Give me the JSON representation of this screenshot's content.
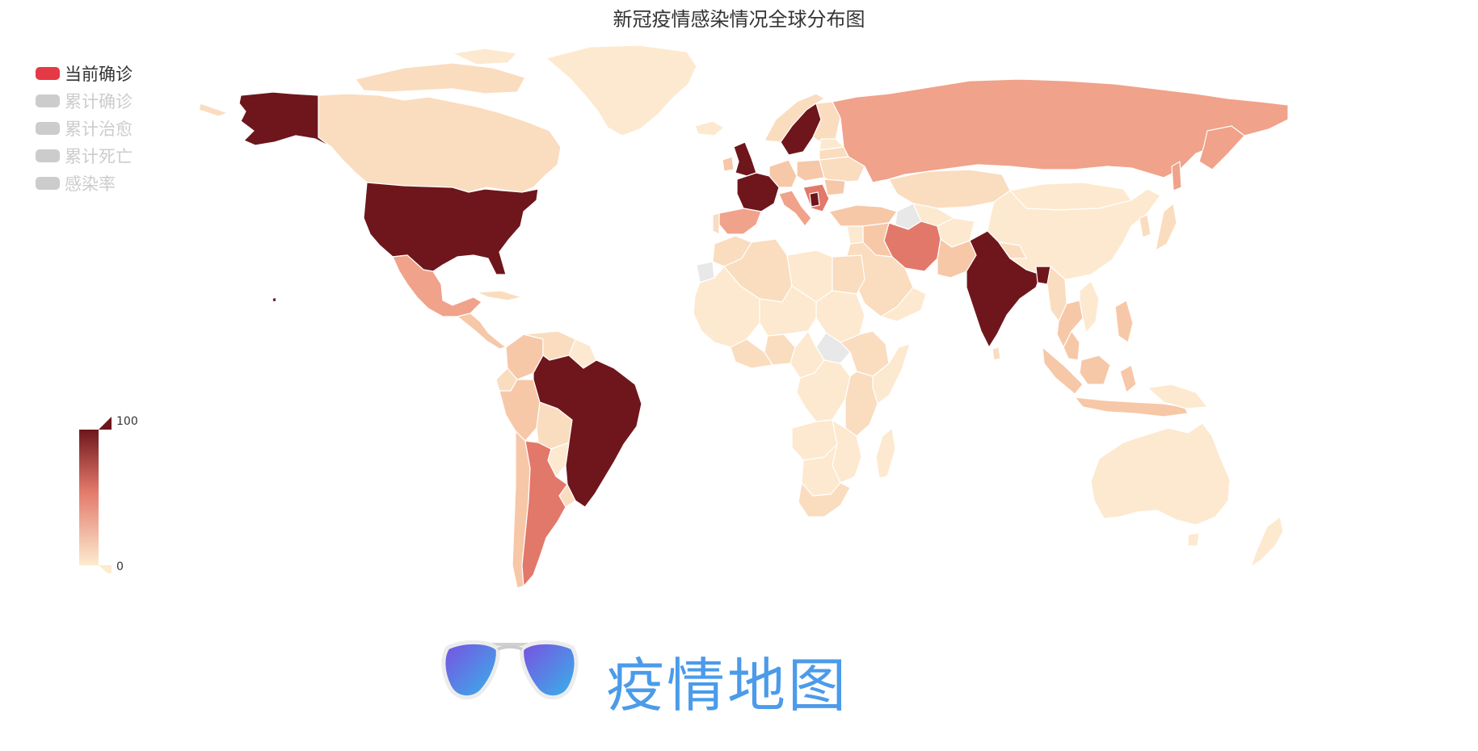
{
  "title": "新冠疫情感染情况全球分布图",
  "legend": [
    {
      "label": "当前确诊",
      "active": true,
      "color": "#e63946",
      "text_color": "#333333"
    },
    {
      "label": "累计确诊",
      "active": false,
      "color": "#cccccc",
      "text_color": "#cccccc"
    },
    {
      "label": "累计治愈",
      "active": false,
      "color": "#cccccc",
      "text_color": "#cccccc"
    },
    {
      "label": "累计死亡",
      "active": false,
      "color": "#cccccc",
      "text_color": "#cccccc"
    },
    {
      "label": "感染率",
      "active": false,
      "color": "#cccccc",
      "text_color": "#cccccc"
    }
  ],
  "visual_map": {
    "max_label": "100",
    "min_label": "0",
    "color_high": "#6e161c",
    "color_mid": "#e8806a",
    "color_low": "#fdebcf"
  },
  "map_colors": {
    "no_data": "#e8e8e8",
    "low": "#fde9cf",
    "low2": "#fadcbf",
    "mid_low": "#f6c8a8",
    "mid": "#f0a28a",
    "mid_high": "#e2786a",
    "high": "#6e161c"
  },
  "watermark": {
    "text": "疫情地图",
    "color": "#4b9bea"
  }
}
